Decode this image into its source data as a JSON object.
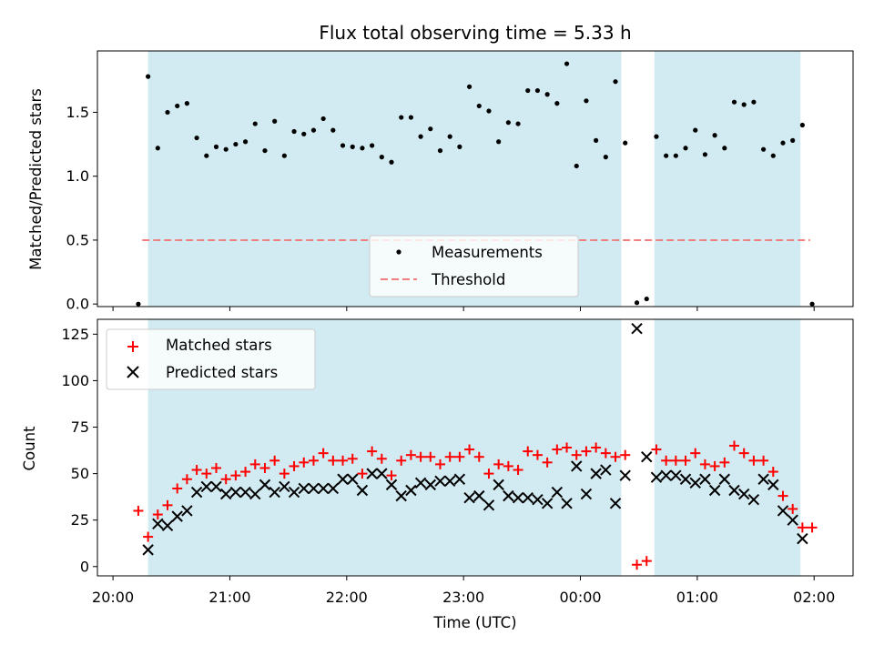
{
  "chart_data": [
    {
      "type": "scatter",
      "title": "Flux total observing time = 5.33 h",
      "ylabel": "Matched/Predicted stars",
      "xlabel": "",
      "xlim": [
        "20:00",
        "02:00"
      ],
      "ylim": [
        0,
        2.0
      ],
      "ytick_labels": [
        "0.0",
        "0.5",
        "1.0",
        "1.5"
      ],
      "ytick_values": [
        0,
        0.5,
        1.0,
        1.5
      ],
      "legend": {
        "placement": "lower-center",
        "entries": [
          "Measurements",
          "Threshold"
        ]
      },
      "threshold": {
        "name": "Threshold",
        "y": 0.5,
        "x_start": "20:15",
        "x_end": "01:58",
        "color": "#f08080"
      },
      "shaded_intervals": [
        [
          "20:18",
          "00:21"
        ],
        [
          "00:38",
          "01:53"
        ]
      ],
      "shade_color": "#add8e6",
      "series": [
        {
          "name": "Measurements",
          "color": "#000000",
          "points": [
            [
              "20:13",
              0.0
            ],
            [
              "20:18",
              1.78
            ],
            [
              "20:23",
              1.22
            ],
            [
              "20:28",
              1.5
            ],
            [
              "20:33",
              1.55
            ],
            [
              "20:38",
              1.57
            ],
            [
              "20:43",
              1.3
            ],
            [
              "20:48",
              1.16
            ],
            [
              "20:53",
              1.23
            ],
            [
              "20:58",
              1.21
            ],
            [
              "21:03",
              1.25
            ],
            [
              "21:08",
              1.27
            ],
            [
              "21:13",
              1.41
            ],
            [
              "21:18",
              1.2
            ],
            [
              "21:23",
              1.43
            ],
            [
              "21:28",
              1.16
            ],
            [
              "21:33",
              1.35
            ],
            [
              "21:38",
              1.33
            ],
            [
              "21:43",
              1.36
            ],
            [
              "21:48",
              1.45
            ],
            [
              "21:53",
              1.36
            ],
            [
              "21:58",
              1.24
            ],
            [
              "22:03",
              1.23
            ],
            [
              "22:08",
              1.22
            ],
            [
              "22:13",
              1.24
            ],
            [
              "22:18",
              1.15
            ],
            [
              "22:23",
              1.11
            ],
            [
              "22:28",
              1.46
            ],
            [
              "22:33",
              1.46
            ],
            [
              "22:38",
              1.31
            ],
            [
              "22:43",
              1.37
            ],
            [
              "22:48",
              1.2
            ],
            [
              "22:53",
              1.31
            ],
            [
              "22:58",
              1.23
            ],
            [
              "23:03",
              1.7
            ],
            [
              "23:08",
              1.55
            ],
            [
              "23:13",
              1.51
            ],
            [
              "23:18",
              1.27
            ],
            [
              "23:23",
              1.42
            ],
            [
              "23:28",
              1.41
            ],
            [
              "23:33",
              1.67
            ],
            [
              "23:38",
              1.67
            ],
            [
              "23:43",
              1.64
            ],
            [
              "23:48",
              1.57
            ],
            [
              "23:53",
              1.88
            ],
            [
              "23:58",
              1.08
            ],
            [
              "00:03",
              1.59
            ],
            [
              "00:08",
              1.28
            ],
            [
              "00:13",
              1.15
            ],
            [
              "00:18",
              1.74
            ],
            [
              "00:23",
              1.26
            ],
            [
              "00:29",
              0.01
            ],
            [
              "00:34",
              0.04
            ],
            [
              "00:39",
              1.31
            ],
            [
              "00:44",
              1.16
            ],
            [
              "00:49",
              1.16
            ],
            [
              "00:54",
              1.22
            ],
            [
              "00:59",
              1.36
            ],
            [
              "01:04",
              1.17
            ],
            [
              "01:09",
              1.32
            ],
            [
              "01:14",
              1.22
            ],
            [
              "01:19",
              1.58
            ],
            [
              "01:24",
              1.56
            ],
            [
              "01:29",
              1.58
            ],
            [
              "01:34",
              1.21
            ],
            [
              "01:39",
              1.16
            ],
            [
              "01:44",
              1.26
            ],
            [
              "01:49",
              1.28
            ],
            [
              "01:54",
              1.4
            ],
            [
              "01:59",
              0.0
            ]
          ]
        }
      ]
    },
    {
      "type": "scatter",
      "title": "",
      "xlabel": "Time (UTC)",
      "ylabel": "Count",
      "xlim": [
        "20:00",
        "02:00"
      ],
      "ylim": [
        -5,
        133
      ],
      "xtick_labels": [
        "20:00",
        "21:00",
        "22:00",
        "23:00",
        "00:00",
        "01:00",
        "02:00"
      ],
      "ytick_labels": [
        "0",
        "25",
        "50",
        "75",
        "100",
        "125"
      ],
      "ytick_values": [
        0,
        25,
        50,
        75,
        100,
        125
      ],
      "legend": {
        "placement": "upper-left",
        "entries": [
          "Matched stars",
          "Predicted stars"
        ]
      },
      "shaded_intervals": [
        [
          "20:18",
          "00:21"
        ],
        [
          "00:38",
          "01:53"
        ]
      ],
      "shade_color": "#add8e6",
      "x": [
        "20:13",
        "20:18",
        "20:23",
        "20:28",
        "20:33",
        "20:38",
        "20:43",
        "20:48",
        "20:53",
        "20:58",
        "21:03",
        "21:08",
        "21:13",
        "21:18",
        "21:23",
        "21:28",
        "21:33",
        "21:38",
        "21:43",
        "21:48",
        "21:53",
        "21:58",
        "22:03",
        "22:08",
        "22:13",
        "22:18",
        "22:23",
        "22:28",
        "22:33",
        "22:38",
        "22:43",
        "22:48",
        "22:53",
        "22:58",
        "23:03",
        "23:08",
        "23:13",
        "23:18",
        "23:23",
        "23:28",
        "23:33",
        "23:38",
        "23:43",
        "23:48",
        "23:53",
        "23:58",
        "00:03",
        "00:08",
        "00:13",
        "00:18",
        "00:23",
        "00:29",
        "00:34",
        "00:39",
        "00:44",
        "00:49",
        "00:54",
        "00:59",
        "01:04",
        "01:09",
        "01:14",
        "01:19",
        "01:24",
        "01:29",
        "01:34",
        "01:39",
        "01:44",
        "01:49",
        "01:54",
        "01:59"
      ],
      "series": [
        {
          "name": "Matched stars",
          "marker": "+",
          "color": "#ff0000",
          "values": [
            30,
            16,
            28,
            33,
            42,
            47,
            52,
            50,
            53,
            47,
            49,
            51,
            55,
            53,
            57,
            50,
            54,
            56,
            57,
            61,
            57,
            57,
            58,
            50,
            62,
            58,
            49,
            57,
            60,
            59,
            59,
            55,
            59,
            59,
            63,
            59,
            50,
            55,
            54,
            52,
            62,
            60,
            56,
            63,
            64,
            60,
            62,
            64,
            61,
            59,
            60,
            1,
            3,
            63,
            57,
            57,
            57,
            61,
            55,
            54,
            56,
            65,
            61,
            57,
            57,
            51,
            38,
            31,
            21,
            21
          ]
        },
        {
          "name": "Predicted stars",
          "marker": "x",
          "color": "#000000",
          "values": [
            null,
            9,
            23,
            22,
            27,
            30,
            40,
            43,
            43,
            39,
            40,
            40,
            39,
            44,
            40,
            43,
            40,
            42,
            42,
            42,
            42,
            47,
            47,
            41,
            50,
            50,
            44,
            38,
            41,
            45,
            44,
            46,
            46,
            47,
            37,
            38,
            33,
            44,
            38,
            37,
            37,
            36,
            34,
            40,
            34,
            54,
            39,
            50,
            52,
            34,
            49,
            128,
            59,
            48,
            49,
            49,
            47,
            45,
            47,
            41,
            47,
            41,
            39,
            36,
            47,
            44,
            30,
            25,
            15,
            null
          ]
        }
      ]
    }
  ]
}
